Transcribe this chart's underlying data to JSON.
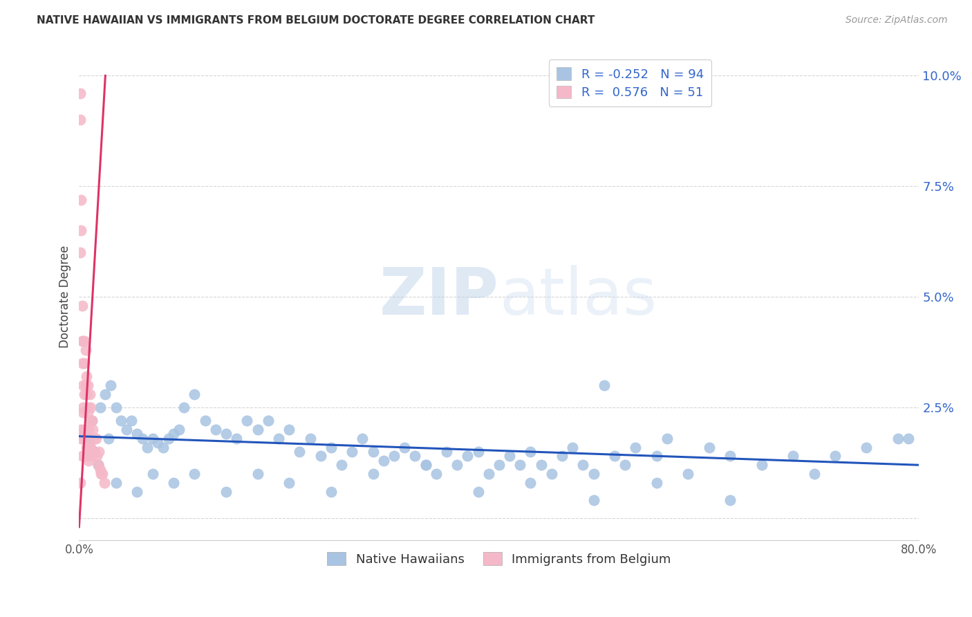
{
  "title": "NATIVE HAWAIIAN VS IMMIGRANTS FROM BELGIUM DOCTORATE DEGREE CORRELATION CHART",
  "source": "Source: ZipAtlas.com",
  "ylabel": "Doctorate Degree",
  "watermark_zip": "ZIP",
  "watermark_atlas": "atlas",
  "xmin": 0.0,
  "xmax": 0.8,
  "ymin": -0.005,
  "ymax": 0.105,
  "yticks": [
    0.0,
    0.025,
    0.05,
    0.075,
    0.1
  ],
  "ytick_labels": [
    "",
    "2.5%",
    "5.0%",
    "7.5%",
    "10.0%"
  ],
  "xticks": [
    0.0,
    0.2,
    0.4,
    0.6,
    0.8
  ],
  "xtick_labels": [
    "0.0%",
    "",
    "",
    "",
    "80.0%"
  ],
  "blue_R": -0.252,
  "blue_N": 94,
  "pink_R": 0.576,
  "pink_N": 51,
  "blue_color": "#a8c4e2",
  "pink_color": "#f5b8c8",
  "blue_line_color": "#2255bb",
  "pink_line_color": "#dd3366",
  "grid_color": "#cccccc",
  "title_color": "#333333",
  "source_color": "#999999",
  "accent_color": "#3366cc",
  "blue_scatter_x": [
    0.005,
    0.008,
    0.012,
    0.015,
    0.018,
    0.02,
    0.025,
    0.028,
    0.03,
    0.035,
    0.04,
    0.045,
    0.05,
    0.055,
    0.06,
    0.065,
    0.07,
    0.075,
    0.08,
    0.085,
    0.09,
    0.095,
    0.1,
    0.11,
    0.12,
    0.13,
    0.14,
    0.15,
    0.16,
    0.17,
    0.18,
    0.19,
    0.2,
    0.21,
    0.22,
    0.23,
    0.24,
    0.25,
    0.26,
    0.27,
    0.28,
    0.29,
    0.3,
    0.31,
    0.32,
    0.33,
    0.34,
    0.35,
    0.36,
    0.37,
    0.38,
    0.39,
    0.4,
    0.41,
    0.42,
    0.43,
    0.44,
    0.45,
    0.46,
    0.47,
    0.48,
    0.49,
    0.5,
    0.51,
    0.52,
    0.53,
    0.55,
    0.56,
    0.58,
    0.6,
    0.62,
    0.65,
    0.68,
    0.7,
    0.72,
    0.75,
    0.78,
    0.035,
    0.055,
    0.07,
    0.09,
    0.11,
    0.14,
    0.17,
    0.2,
    0.24,
    0.28,
    0.33,
    0.38,
    0.43,
    0.49,
    0.55,
    0.62,
    0.79
  ],
  "blue_scatter_y": [
    0.02,
    0.018,
    0.022,
    0.015,
    0.012,
    0.025,
    0.028,
    0.018,
    0.03,
    0.025,
    0.022,
    0.02,
    0.022,
    0.019,
    0.018,
    0.016,
    0.018,
    0.017,
    0.016,
    0.018,
    0.019,
    0.02,
    0.025,
    0.028,
    0.022,
    0.02,
    0.019,
    0.018,
    0.022,
    0.02,
    0.022,
    0.018,
    0.02,
    0.015,
    0.018,
    0.014,
    0.016,
    0.012,
    0.015,
    0.018,
    0.015,
    0.013,
    0.014,
    0.016,
    0.014,
    0.012,
    0.01,
    0.015,
    0.012,
    0.014,
    0.015,
    0.01,
    0.012,
    0.014,
    0.012,
    0.015,
    0.012,
    0.01,
    0.014,
    0.016,
    0.012,
    0.01,
    0.03,
    0.014,
    0.012,
    0.016,
    0.014,
    0.018,
    0.01,
    0.016,
    0.014,
    0.012,
    0.014,
    0.01,
    0.014,
    0.016,
    0.018,
    0.008,
    0.006,
    0.01,
    0.008,
    0.01,
    0.006,
    0.01,
    0.008,
    0.006,
    0.01,
    0.012,
    0.006,
    0.008,
    0.004,
    0.008,
    0.004,
    0.018
  ],
  "pink_scatter_x": [
    0.001,
    0.001,
    0.001,
    0.002,
    0.002,
    0.002,
    0.003,
    0.003,
    0.003,
    0.004,
    0.004,
    0.004,
    0.005,
    0.005,
    0.005,
    0.005,
    0.006,
    0.006,
    0.006,
    0.007,
    0.007,
    0.007,
    0.008,
    0.008,
    0.008,
    0.009,
    0.009,
    0.009,
    0.01,
    0.01,
    0.01,
    0.011,
    0.011,
    0.012,
    0.012,
    0.013,
    0.014,
    0.015,
    0.016,
    0.017,
    0.018,
    0.019,
    0.02,
    0.021,
    0.022,
    0.024,
    0.001,
    0.002,
    0.003,
    0.004,
    0.005
  ],
  "pink_scatter_y": [
    0.096,
    0.09,
    0.008,
    0.072,
    0.065,
    0.018,
    0.048,
    0.04,
    0.014,
    0.04,
    0.03,
    0.024,
    0.04,
    0.035,
    0.028,
    0.018,
    0.038,
    0.03,
    0.02,
    0.032,
    0.028,
    0.016,
    0.03,
    0.024,
    0.014,
    0.025,
    0.02,
    0.013,
    0.028,
    0.022,
    0.016,
    0.025,
    0.016,
    0.022,
    0.014,
    0.02,
    0.018,
    0.015,
    0.018,
    0.014,
    0.012,
    0.015,
    0.011,
    0.01,
    0.01,
    0.008,
    0.06,
    0.02,
    0.035,
    0.025,
    0.02
  ],
  "blue_line_x": [
    0.0,
    0.8
  ],
  "blue_line_y": [
    0.0185,
    0.012
  ],
  "pink_line_x": [
    0.0,
    0.025
  ],
  "pink_line_y": [
    -0.002,
    0.1
  ],
  "legend_label_blue": "Native Hawaiians",
  "legend_label_pink": "Immigrants from Belgium"
}
